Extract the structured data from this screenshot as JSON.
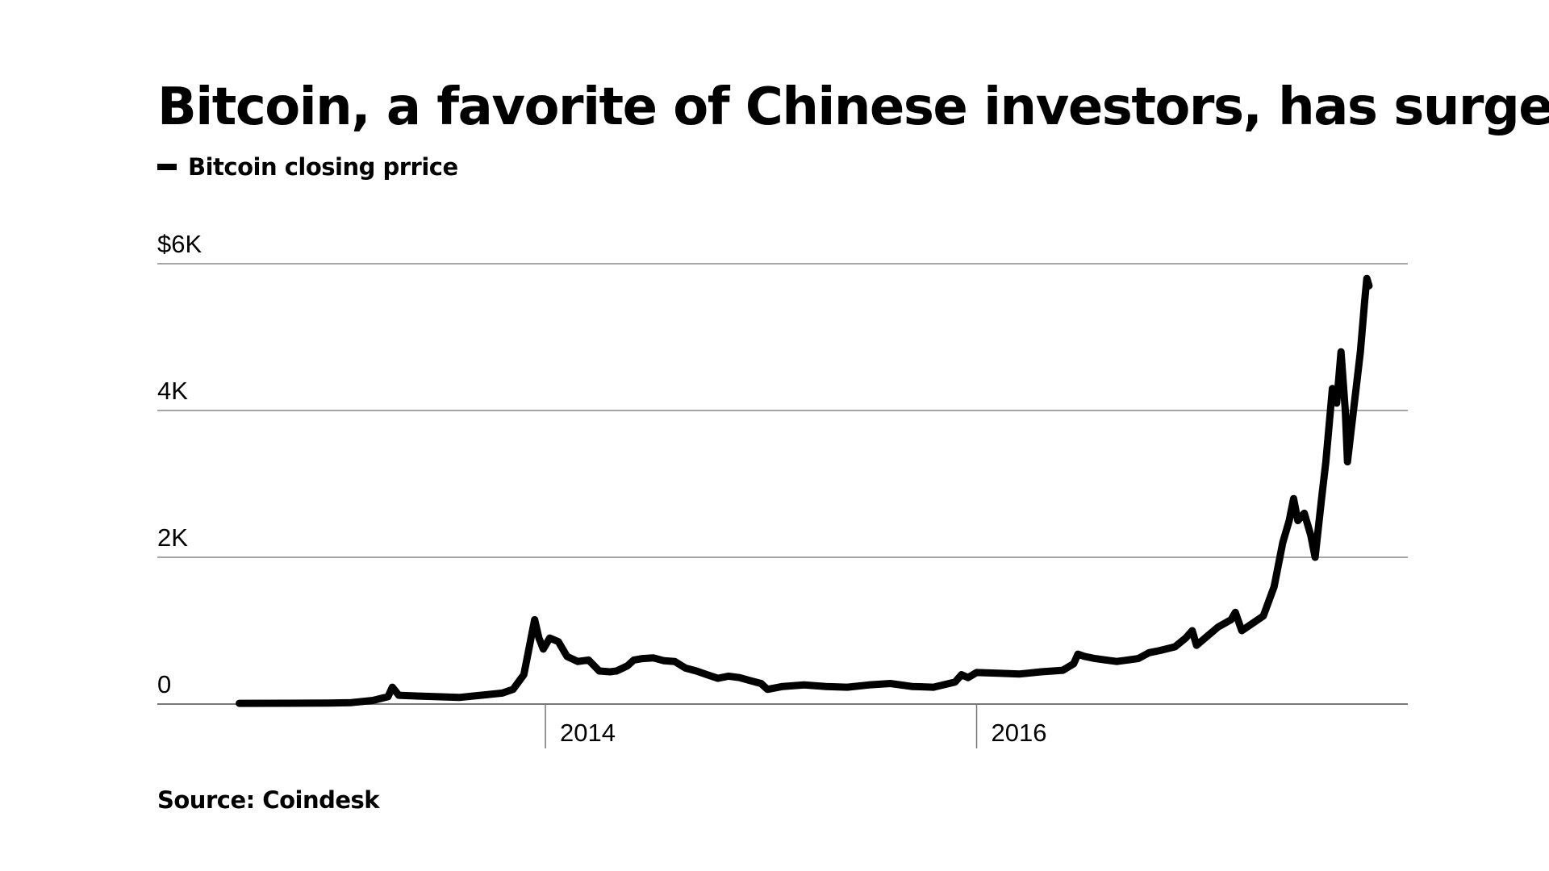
{
  "title": "Bitcoin, a favorite of Chinese investors, has surged",
  "legend": {
    "label": "Bitcoin closing prrice",
    "color": "#000000"
  },
  "source": "Source: Coindesk",
  "chart_data": {
    "type": "line",
    "title": "Bitcoin, a favorite of Chinese investors, has surged",
    "xlabel": "",
    "ylabel": "",
    "xlim": [
      2012.2,
      2018.0
    ],
    "ylim": [
      0,
      6000
    ],
    "grid": true,
    "legend_position": "top-left",
    "y_ticks": [
      {
        "value": 0,
        "label": "0"
      },
      {
        "value": 2000,
        "label": "2K"
      },
      {
        "value": 4000,
        "label": "4K"
      },
      {
        "value": 6000,
        "label": "$6K"
      }
    ],
    "x_ticks": [
      {
        "value": 2014,
        "label": "2014"
      },
      {
        "value": 2016,
        "label": "2016"
      }
    ],
    "series": [
      {
        "name": "Bitcoin closing prrice",
        "color": "#000000",
        "points": [
          [
            2012.58,
            10
          ],
          [
            2012.8,
            11
          ],
          [
            2013.0,
            13
          ],
          [
            2013.1,
            20
          ],
          [
            2013.2,
            50
          ],
          [
            2013.27,
            100
          ],
          [
            2013.29,
            230
          ],
          [
            2013.32,
            120
          ],
          [
            2013.4,
            110
          ],
          [
            2013.5,
            100
          ],
          [
            2013.6,
            90
          ],
          [
            2013.7,
            120
          ],
          [
            2013.8,
            150
          ],
          [
            2013.85,
            200
          ],
          [
            2013.9,
            400
          ],
          [
            2013.92,
            700
          ],
          [
            2013.94,
            1000
          ],
          [
            2013.95,
            1150
          ],
          [
            2013.97,
            900
          ],
          [
            2013.99,
            750
          ],
          [
            2014.02,
            900
          ],
          [
            2014.06,
            850
          ],
          [
            2014.1,
            650
          ],
          [
            2014.15,
            580
          ],
          [
            2014.2,
            600
          ],
          [
            2014.25,
            450
          ],
          [
            2014.3,
            440
          ],
          [
            2014.33,
            450
          ],
          [
            2014.38,
            520
          ],
          [
            2014.41,
            600
          ],
          [
            2014.45,
            620
          ],
          [
            2014.5,
            630
          ],
          [
            2014.55,
            590
          ],
          [
            2014.6,
            580
          ],
          [
            2014.65,
            490
          ],
          [
            2014.7,
            450
          ],
          [
            2014.75,
            400
          ],
          [
            2014.8,
            350
          ],
          [
            2014.85,
            380
          ],
          [
            2014.9,
            360
          ],
          [
            2014.95,
            320
          ],
          [
            2015.0,
            280
          ],
          [
            2015.03,
            200
          ],
          [
            2015.1,
            240
          ],
          [
            2015.2,
            260
          ],
          [
            2015.3,
            240
          ],
          [
            2015.4,
            230
          ],
          [
            2015.5,
            260
          ],
          [
            2015.6,
            280
          ],
          [
            2015.7,
            240
          ],
          [
            2015.8,
            230
          ],
          [
            2015.9,
            300
          ],
          [
            2015.93,
            400
          ],
          [
            2015.96,
            360
          ],
          [
            2016.0,
            430
          ],
          [
            2016.1,
            420
          ],
          [
            2016.2,
            410
          ],
          [
            2016.3,
            440
          ],
          [
            2016.4,
            460
          ],
          [
            2016.45,
            550
          ],
          [
            2016.47,
            680
          ],
          [
            2016.5,
            650
          ],
          [
            2016.55,
            620
          ],
          [
            2016.6,
            600
          ],
          [
            2016.65,
            580
          ],
          [
            2016.7,
            600
          ],
          [
            2016.75,
            620
          ],
          [
            2016.8,
            700
          ],
          [
            2016.85,
            730
          ],
          [
            2016.92,
            780
          ],
          [
            2016.97,
            900
          ],
          [
            2017.0,
            1000
          ],
          [
            2017.02,
            800
          ],
          [
            2017.06,
            900
          ],
          [
            2017.12,
            1050
          ],
          [
            2017.18,
            1150
          ],
          [
            2017.2,
            1250
          ],
          [
            2017.23,
            1000
          ],
          [
            2017.28,
            1100
          ],
          [
            2017.33,
            1200
          ],
          [
            2017.38,
            1600
          ],
          [
            2017.42,
            2200
          ],
          [
            2017.45,
            2500
          ],
          [
            2017.47,
            2800
          ],
          [
            2017.49,
            2500
          ],
          [
            2017.52,
            2600
          ],
          [
            2017.55,
            2300
          ],
          [
            2017.57,
            2000
          ],
          [
            2017.6,
            2800
          ],
          [
            2017.62,
            3300
          ],
          [
            2017.65,
            4300
          ],
          [
            2017.67,
            4100
          ],
          [
            2017.69,
            4800
          ],
          [
            2017.71,
            4000
          ],
          [
            2017.72,
            3300
          ],
          [
            2017.74,
            3800
          ],
          [
            2017.76,
            4300
          ],
          [
            2017.78,
            4800
          ],
          [
            2017.8,
            5500
          ],
          [
            2017.81,
            5800
          ],
          [
            2017.82,
            5700
          ]
        ]
      }
    ]
  }
}
